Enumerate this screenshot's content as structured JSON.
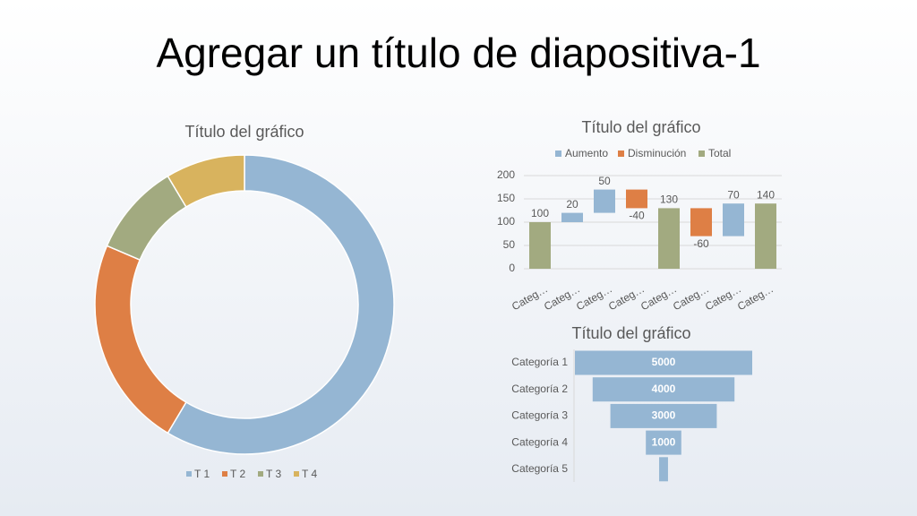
{
  "title": "Agregar un título de diapositiva-1",
  "chart_data": [
    {
      "type": "donut",
      "title": "Título del gráfico",
      "categories": [
        "T 1",
        "T 2",
        "T 3",
        "T 4"
      ],
      "values": [
        8.2,
        3.2,
        1.4,
        1.2
      ],
      "colors": [
        "#95b6d3",
        "#de7f45",
        "#a2aa80",
        "#d8b35e"
      ]
    },
    {
      "type": "waterfall",
      "title": "Título del gráfico",
      "legend": [
        {
          "name": "Aumento",
          "color": "#95b6d3"
        },
        {
          "name": "Disminución",
          "color": "#de7f45"
        },
        {
          "name": "Total",
          "color": "#a2aa80"
        }
      ],
      "categories": [
        "Categ…",
        "Categ…",
        "Categ…",
        "Categ…",
        "Categ…",
        "Categ…",
        "Categ…",
        "Categ…"
      ],
      "values": [
        100,
        20,
        50,
        -40,
        130,
        -60,
        70,
        140
      ],
      "legend_index": [
        2,
        0,
        0,
        1,
        2,
        1,
        0,
        2
      ],
      "ylim": [
        0,
        200
      ],
      "yticks": [
        0,
        50,
        100,
        150,
        200
      ],
      "grid": true
    },
    {
      "type": "funnel",
      "title": "Título del gráfico",
      "categories": [
        "Categoría 1",
        "Categoría 2",
        "Categoría 3",
        "Categoría 4",
        "Categoría 5"
      ],
      "values": [
        5000,
        4000,
        3000,
        1000,
        250
      ],
      "value_labels": [
        "5000",
        "4000",
        "3000",
        "1000",
        null
      ],
      "color": "#95b6d3"
    }
  ]
}
